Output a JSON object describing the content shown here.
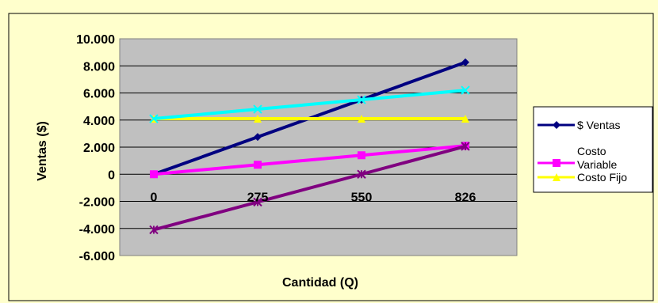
{
  "colors": {
    "background": "#ffffcc",
    "plot_area": "#c0c0c0",
    "gridline": "#000000",
    "border": "#000000"
  },
  "chart_data": {
    "type": "line",
    "title": "",
    "xlabel": "Cantidad (Q)",
    "ylabel": "Ventas ($)",
    "categories": [
      "0",
      "275",
      "550",
      "826"
    ],
    "ylim": [
      -6000,
      10000
    ],
    "yticks": [
      10000,
      8000,
      6000,
      4000,
      2000,
      0,
      -2000,
      -4000,
      -6000
    ],
    "ytick_labels": [
      "10.000",
      "8.000",
      "6.000",
      "4.000",
      "2.000",
      "0",
      "-2.000",
      "-4.000",
      "-6.000"
    ],
    "grid": true,
    "legend_position": "right",
    "series": [
      {
        "name": "$ Ventas",
        "values": [
          0,
          2750,
          5500,
          8260
        ],
        "color": "#000080",
        "marker": "diamond"
      },
      {
        "name": "Costo Variable",
        "values": [
          0,
          700,
          1400,
          2100
        ],
        "color": "#ff00ff",
        "marker": "square"
      },
      {
        "name": "Costo Fijo",
        "values": [
          4100,
          4100,
          4100,
          4100
        ],
        "color": "#ffff00",
        "marker": "triangle"
      },
      {
        "values": [
          4100,
          4800,
          5500,
          6200
        ],
        "color": "#00ffff",
        "marker": "x"
      },
      {
        "values": [
          -4100,
          -2050,
          0,
          2060
        ],
        "color": "#800080",
        "marker": "star"
      }
    ]
  }
}
